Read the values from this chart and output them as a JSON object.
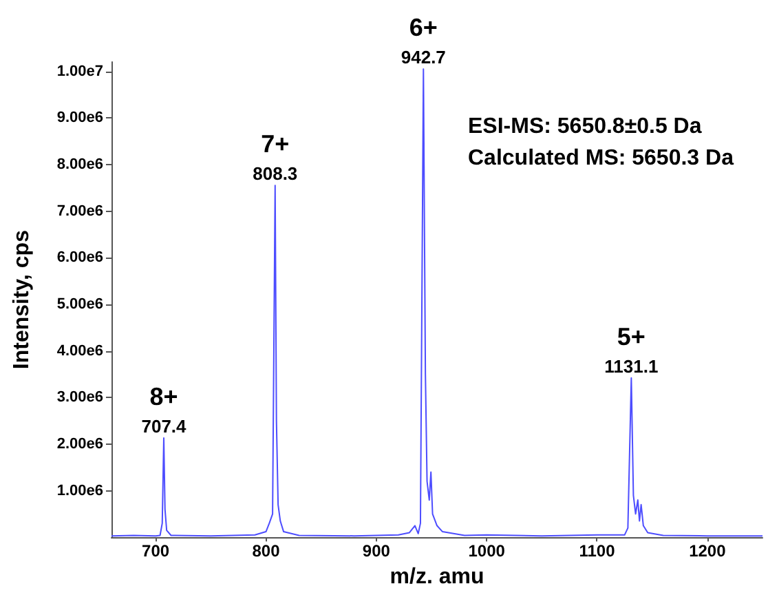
{
  "chart_data": {
    "type": "line",
    "xlabel": "m/z. amu",
    "ylabel": "Intensity, cps",
    "x": [
      660,
      680,
      700,
      704,
      706,
      707.4,
      708.5,
      710,
      714,
      750,
      790,
      800,
      803,
      806,
      808.3,
      809.5,
      811,
      813,
      816,
      830,
      880,
      920,
      930,
      935,
      938,
      940,
      942.7,
      944.5,
      946,
      948,
      949.5,
      951,
      955,
      960,
      980,
      1000,
      1050,
      1100,
      1125,
      1128,
      1131.1,
      1133,
      1135,
      1137,
      1138.5,
      1140,
      1142,
      1146,
      1160,
      1200,
      1250
    ],
    "series": [
      {
        "color": "#4d4dff",
        "values": [
          30000,
          40000,
          30000,
          40000,
          300000,
          2130000,
          600000,
          150000,
          40000,
          30000,
          50000,
          120000,
          300000,
          500000,
          7550000,
          2500000,
          700000,
          350000,
          120000,
          40000,
          30000,
          50000,
          100000,
          250000,
          80000,
          300000,
          10050000,
          3500000,
          1200000,
          800000,
          1400000,
          500000,
          250000,
          120000,
          40000,
          50000,
          30000,
          50000,
          50000,
          200000,
          3420000,
          900000,
          500000,
          800000,
          350000,
          700000,
          250000,
          100000,
          40000,
          30000,
          30000
        ]
      }
    ],
    "xlim": [
      660,
      1250
    ],
    "xticks": [
      700,
      800,
      900,
      1000,
      1100,
      1200
    ],
    "ylim": [
      0,
      10200000
    ],
    "yticks": [
      {
        "value": 1000000,
        "label": "1.00e6"
      },
      {
        "value": 2000000,
        "label": "2.00e6"
      },
      {
        "value": 3000000,
        "label": "3.00e6"
      },
      {
        "value": 4000000,
        "label": "4.00e6"
      },
      {
        "value": 5000000,
        "label": "5.00e6"
      },
      {
        "value": 6000000,
        "label": "6.00e6"
      },
      {
        "value": 7000000,
        "label": "7.00e6"
      },
      {
        "value": 8000000,
        "label": "8.00e6"
      },
      {
        "value": 9000000,
        "label": "9.00e6"
      },
      {
        "value": 10000000,
        "label": "1.00e7"
      }
    ],
    "grid": false,
    "marker": "none",
    "line_style": "solid",
    "annotations": [
      {
        "text": "707.4",
        "x": 707.4,
        "y": 2130000
      },
      {
        "text": "8+",
        "x": 707.4,
        "y": 2130000
      },
      {
        "text": "808.3",
        "x": 808.3,
        "y": 7550000
      },
      {
        "text": "7+",
        "x": 808.3,
        "y": 7550000
      },
      {
        "text": "942.7",
        "x": 942.7,
        "y": 10050000
      },
      {
        "text": "6+",
        "x": 942.7,
        "y": 10050000
      },
      {
        "text": "1131.1",
        "x": 1131.1,
        "y": 3420000
      },
      {
        "text": "5+",
        "x": 1131.1,
        "y": 3420000
      },
      "ESI-MS: 5650.8±0.5 Da",
      "Calculated MS: 5650.3 Da"
    ]
  }
}
